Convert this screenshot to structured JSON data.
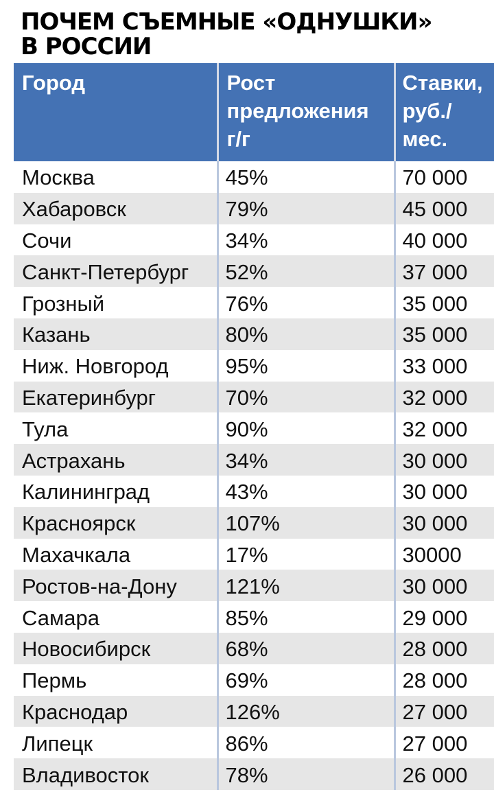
{
  "title": {
    "line1": "ПОЧЕМ СЪЕМНЫЕ «ОДНУШКИ»",
    "line2": "В РОССИИ"
  },
  "chart_data": {
    "type": "table",
    "columns": [
      "Город",
      "Рост предложения г/г",
      "Ставки, руб./ мес."
    ],
    "header_lines": [
      [
        "Город"
      ],
      [
        "Рост",
        "предложения",
        "г/г"
      ],
      [
        "Ставки,",
        "руб./",
        "мес."
      ]
    ],
    "rows": [
      {
        "city": "Москва",
        "growth": "45%",
        "rate": "70 000"
      },
      {
        "city": "Хабаровск",
        "growth": "79%",
        "rate": "45 000"
      },
      {
        "city": "Сочи",
        "growth": "34%",
        "rate": "40 000"
      },
      {
        "city": "Санкт-Петербург",
        "growth": "52%",
        "rate": "37 000"
      },
      {
        "city": "Грозный",
        "growth": "76%",
        "rate": "35 000"
      },
      {
        "city": "Казань",
        "growth": "80%",
        "rate": "35 000"
      },
      {
        "city": "Ниж. Новгород",
        "growth": "95%",
        "rate": "33 000"
      },
      {
        "city": "Екатеринбург",
        "growth": "70%",
        "rate": "32 000"
      },
      {
        "city": "Тула",
        "growth": "90%",
        "rate": "32 000"
      },
      {
        "city": "Астрахань",
        "growth": "34%",
        "rate": "30 000"
      },
      {
        "city": "Калининград",
        "growth": "43%",
        "rate": "30 000"
      },
      {
        "city": "Красноярск",
        "growth": "107%",
        "rate": "30 000"
      },
      {
        "city": "Махачкала",
        "growth": "17%",
        "rate": "30000"
      },
      {
        "city": "Ростов-на-Дону",
        "growth": "121%",
        "rate": "30 000"
      },
      {
        "city": "Самара",
        "growth": "85%",
        "rate": "29 000"
      },
      {
        "city": "Новосибирск",
        "growth": "68%",
        "rate": "28 000"
      },
      {
        "city": "Пермь",
        "growth": "69%",
        "rate": "28 000"
      },
      {
        "city": "Краснодар",
        "growth": "126%",
        "rate": "27 000"
      },
      {
        "city": "Липецк",
        "growth": "86%",
        "rate": "27 000"
      },
      {
        "city": "Владивосток",
        "growth": "78%",
        "rate": "26 000"
      }
    ]
  },
  "colors": {
    "header_bg": "#4472b4",
    "header_text": "#ffffff",
    "stripe": "#e6e6e6"
  }
}
